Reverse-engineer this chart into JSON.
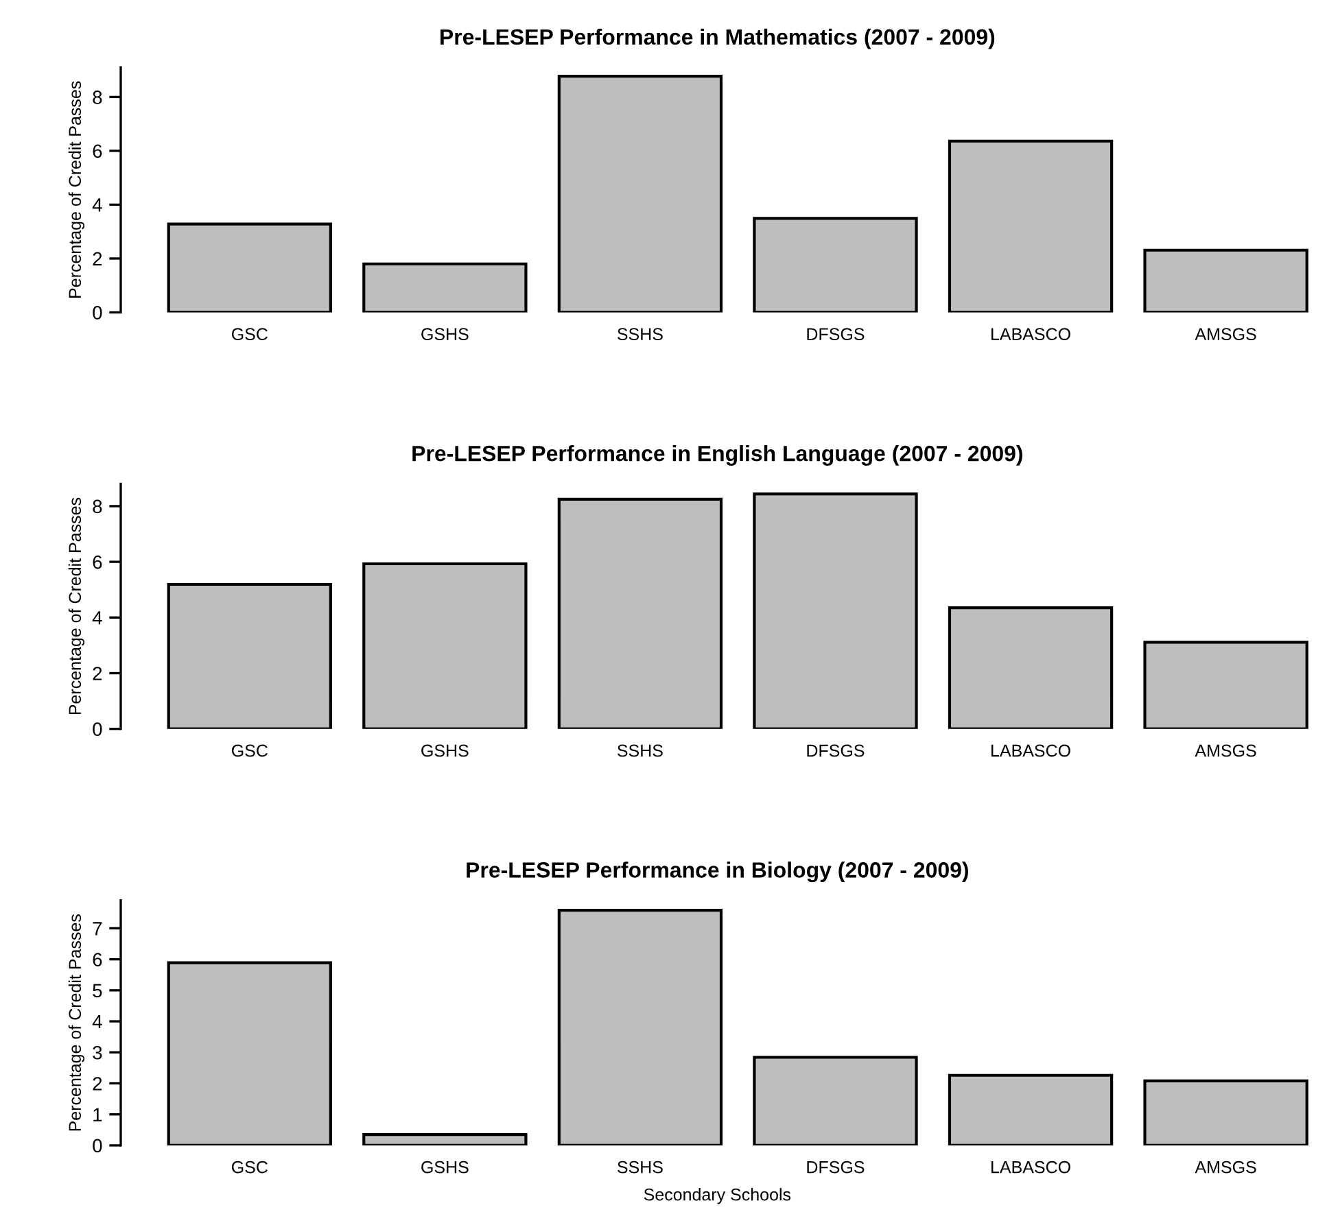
{
  "chart_data": [
    {
      "type": "bar",
      "title": "Pre-LESEP Performance in Mathematics (2007 - 2009)",
      "ylabel": "Percentage of Credit Passes",
      "categories": [
        "GSC",
        "GSHS",
        "SSHS",
        "DFSGS",
        "LABASCO",
        "AMSGS"
      ],
      "values": [
        3.28,
        1.8,
        8.77,
        3.49,
        6.36,
        2.31
      ],
      "color": "#bebebe",
      "ylim": [
        0,
        9.1
      ],
      "yticks": [
        0,
        2,
        4,
        6,
        8
      ],
      "grid": false
    },
    {
      "type": "bar",
      "title": "Pre-LESEP Performance in English Language (2007 - 2009)",
      "ylabel": "Percentage of Credit Passes",
      "categories": [
        "GSC",
        "GSHS",
        "SSHS",
        "DFSGS",
        "LABASCO",
        "AMSGS"
      ],
      "values": [
        5.19,
        5.93,
        8.25,
        8.44,
        4.35,
        3.11
      ],
      "color": "#bebebe",
      "ylim": [
        0,
        8.8
      ],
      "yticks": [
        0,
        2,
        4,
        6,
        8
      ],
      "grid": false
    },
    {
      "type": "bar",
      "title": "Pre-LESEP Performance in Biology (2007 - 2009)",
      "xlabel": "Secondary Schools",
      "ylabel": "Percentage of Credit Passes",
      "categories": [
        "GSC",
        "GSHS",
        "SSHS",
        "DFSGS",
        "LABASCO",
        "AMSGS"
      ],
      "values": [
        5.89,
        0.35,
        7.58,
        2.84,
        2.26,
        2.08
      ],
      "color": "#bebebe",
      "ylim": [
        0,
        7.9
      ],
      "yticks": [
        0,
        1,
        2,
        3,
        4,
        5,
        6,
        7
      ],
      "grid": false
    }
  ]
}
